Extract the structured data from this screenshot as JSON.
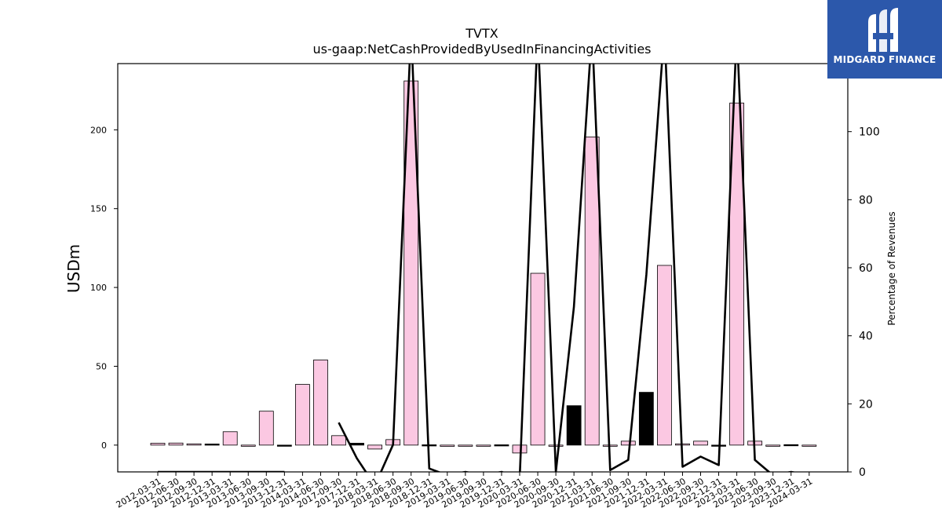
{
  "chart_data": {
    "type": "bar",
    "title": "TVTX",
    "subtitle": "us-gaap:NetCashProvidedByUsedInFinancingActivities",
    "ylabel": "USDm",
    "y2label": "Percentage of Revenues",
    "ylim": [
      -17,
      242
    ],
    "y2lim": [
      0,
      120
    ],
    "yticks": [
      0,
      50,
      100,
      150,
      200
    ],
    "y2ticks": [
      0,
      20,
      40,
      60,
      80,
      100
    ],
    "grid": false,
    "categories": [
      "2012-03-31",
      "2012-06-30",
      "2012-09-30",
      "2012-12-31",
      "2013-03-31",
      "2013-06-30",
      "2013-09-30",
      "2013-12-31",
      "2014-03-31",
      "2014-06-30",
      "2017-09-30",
      "2017-12-31",
      "2018-03-31",
      "2018-06-30",
      "2018-09-30",
      "2018-12-31",
      "2019-03-31",
      "2019-06-30",
      "2019-09-30",
      "2019-12-31",
      "2020-03-31",
      "2020-06-30",
      "2020-09-30",
      "2020-12-31",
      "2021-03-31",
      "2021-06-30",
      "2021-09-30",
      "2021-12-31",
      "2022-03-31",
      "2022-06-30",
      "2022-09-30",
      "2022-12-31",
      "2023-03-31",
      "2023-06-30",
      "2023-09-30",
      "2023-12-31",
      "2024-03-31"
    ],
    "series": [
      {
        "type": "bar",
        "values": [
          1.2,
          1.3,
          0.8,
          0.7,
          8.5,
          -0.3,
          21.5,
          -0.5,
          38.5,
          54,
          6,
          1.2,
          -2.5,
          3.5,
          231,
          0.2,
          -0.8,
          -0.2,
          -0.5,
          0.2,
          -5,
          109,
          -0.2,
          25,
          195.5,
          -0.2,
          2.5,
          33.5,
          114,
          0.8,
          2.5,
          -0.2,
          217,
          2.5,
          -0.5,
          0.3,
          -0.3
        ],
        "colors": [
          "#fbc8e2",
          "#fbc8e2",
          "#fbc8e2",
          "#000000",
          "#fbc8e2",
          "#fbc8e2",
          "#fbc8e2",
          "#000000",
          "#fbc8e2",
          "#fbc8e2",
          "#fbc8e2",
          "#000000",
          "#fbc8e2",
          "#fbc8e2",
          "#fbc8e2",
          "#000000",
          "#fbc8e2",
          "#fbc8e2",
          "#fbc8e2",
          "#000000",
          "#fbc8e2",
          "#fbc8e2",
          "#fbc8e2",
          "#000000",
          "#fbc8e2",
          "#fbc8e2",
          "#fbc8e2",
          "#000000",
          "#fbc8e2",
          "#fbc8e2",
          "#fbc8e2",
          "#000000",
          "#fbc8e2",
          "#fbc8e2",
          "#fbc8e2",
          "#000000",
          "#fbc8e2"
        ]
      },
      {
        "type": "line",
        "axis": "right",
        "color": "#000000",
        "values": [
          0,
          0,
          0,
          0,
          0,
          0,
          0,
          0,
          null,
          null,
          14.5,
          4,
          -4,
          8,
          130,
          1,
          -1,
          0,
          -1,
          0,
          -2,
          130,
          0,
          48.5,
          130,
          0.5,
          3.5,
          58,
          130,
          1.5,
          4.5,
          2,
          130,
          3.5,
          -1,
          0,
          -1
        ]
      }
    ],
    "bar_colors": {
      "default": "#fbc8e2",
      "year_end": "#000000",
      "edge": "#000000"
    }
  },
  "logo": {
    "text": "MIDGARD FINANCE",
    "background": "#2c58ab"
  }
}
